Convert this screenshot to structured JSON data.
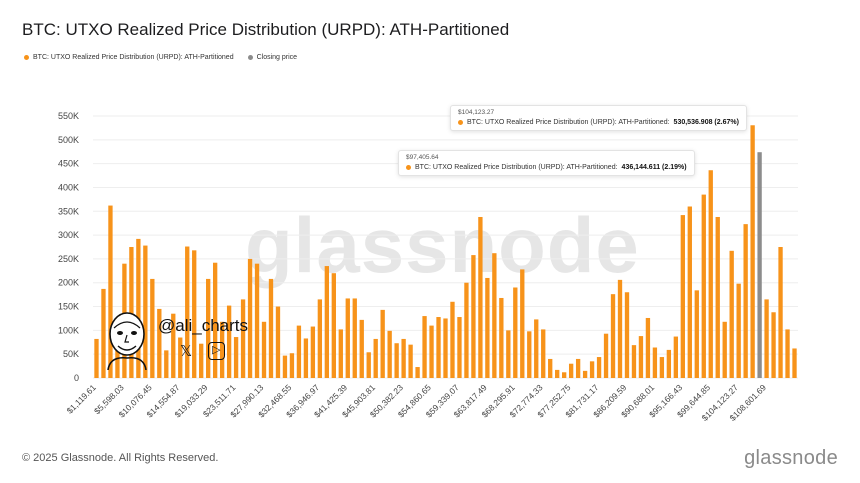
{
  "title": "BTC: UTXO Realized Price Distribution (URPD): ATH-Partitioned",
  "legend": [
    {
      "label": "BTC: UTXO Realized Price Distribution (URPD): ATH-Partitioned",
      "color": "#f7931a"
    },
    {
      "label": "Closing price",
      "color": "#8c8c8c"
    }
  ],
  "watermark": "glassnode",
  "footer": "© 2025 Glassnode. All Rights Reserved.",
  "brand": "glassnode",
  "stamp": {
    "handle": "@ali_charts",
    "x_icon": "𝕏",
    "yt_icon": "▷"
  },
  "tooltips": [
    {
      "date": "$104,123.27",
      "series": "BTC: UTXO Realized Price Distribution (URPD): ATH-Partitioned:",
      "value": "530,536.908 (2.67%)"
    },
    {
      "date": "$97,405.64",
      "series": "BTC: UTXO Realized Price Distribution (URPD): ATH-Partitioned:",
      "value": "436,144.611 (2.19%)"
    }
  ],
  "chart_data": {
    "type": "bar",
    "title": "BTC: UTXO Realized Price Distribution (URPD): ATH-Partitioned",
    "xlabel": "",
    "ylabel": "",
    "ylim": [
      0,
      550000
    ],
    "yticks": [
      "0",
      "50K",
      "100K",
      "150K",
      "200K",
      "250K",
      "300K",
      "350K",
      "400K",
      "450K",
      "500K",
      "550K"
    ],
    "xtick_labels": [
      "$1,119.61",
      "$5,598.03",
      "$10,076.45",
      "$14,554.87",
      "$19,033.29",
      "$23,511.71",
      "$27,990.13",
      "$32,468.55",
      "$36,946.97",
      "$41,425.39",
      "$45,903.81",
      "$50,382.23",
      "$54,860.65",
      "$59,339.07",
      "$63,817.49",
      "$68,295.91",
      "$72,774.33",
      "$77,252.75",
      "$81,731.17",
      "$86,209.59",
      "$90,688.01",
      "$95,166.43",
      "$99,644.85",
      "$104,123.27",
      "$108,601.69"
    ],
    "series": [
      {
        "name": "BTC: UTXO Realized Price Distribution (URPD): ATH-Partitioned",
        "values": [
          82000,
          187000,
          362000,
          95000,
          240000,
          275000,
          292000,
          278000,
          208000,
          145000,
          58000,
          135000,
          85000,
          276000,
          268000,
          72000,
          208000,
          242000,
          118000,
          152000,
          86000,
          165000,
          250000,
          240000,
          118000,
          208000,
          150000,
          47000,
          52000,
          110000,
          83000,
          108000,
          165000,
          235000,
          220000,
          102000,
          167000,
          167000,
          122000,
          54000,
          82000,
          143000,
          99000,
          73000,
          82000,
          70000,
          23000,
          130000,
          110000,
          128000,
          125000,
          160000,
          128000,
          200000,
          258000,
          338000,
          210000,
          262000,
          168000,
          100000,
          190000,
          228000,
          98000,
          123000,
          102000,
          40000,
          17000,
          12000,
          30000,
          40000,
          15000,
          35000,
          44000,
          93000,
          176000,
          206000,
          180000,
          69000,
          88000,
          126000,
          64000,
          44000,
          59000,
          87000,
          342000,
          360000,
          184000,
          385000,
          436144,
          338000,
          118000,
          267000,
          198000,
          323000,
          530537,
          0,
          165000,
          138000,
          275000,
          102000,
          62000
        ]
      },
      {
        "name": "Closing price",
        "bar_index": 95,
        "values": [
          474000
        ]
      }
    ]
  }
}
